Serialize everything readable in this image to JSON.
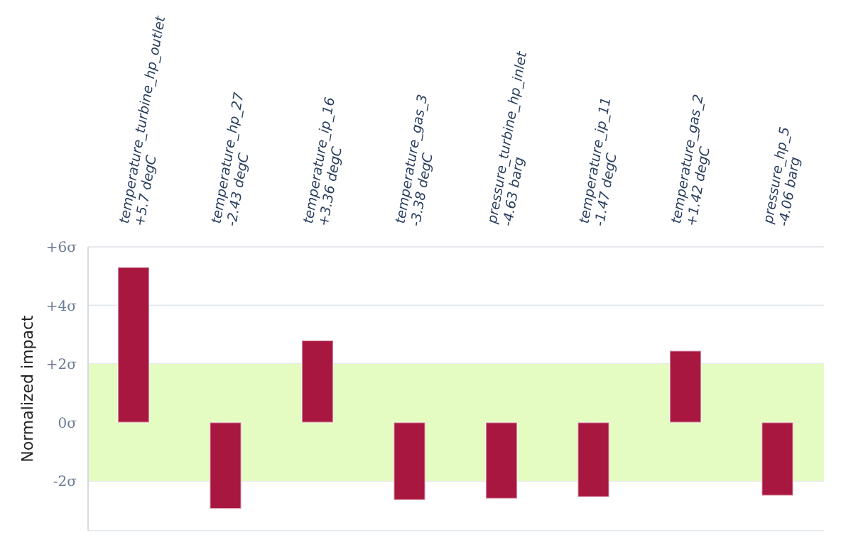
{
  "chart_data": {
    "type": "bar",
    "ylabel": "Normalized impact",
    "categories": [
      "temperature_turbine_hp_outlet\n+5.7 degC",
      "temperature_hp_27\n-2.43 degC",
      "temperature_ip_16\n+3.36 degC",
      "temperature_gas_3\n-3.38 degC",
      "pressure_turbine_hp_inlet\n-4.63 barg",
      "temperature_ip_11\n-1.47 degC",
      "temperature_gas_2\n+1.42 degC",
      "pressure_hp_5\n-4.06 barg"
    ],
    "values": [
      5.3,
      -2.95,
      2.8,
      -2.65,
      -2.6,
      -2.55,
      2.45,
      -2.5
    ],
    "color": "#a8173f",
    "ylim": [
      -3.7,
      6
    ],
    "yticks": [
      {
        "value": -2,
        "label": "-2σ"
      },
      {
        "value": 0,
        "label": "0σ"
      },
      {
        "value": 2,
        "label": "+2σ"
      },
      {
        "value": 4,
        "label": "+4σ"
      },
      {
        "value": 6,
        "label": "+6σ"
      }
    ],
    "bands": [
      {
        "axis": "y",
        "from": -2,
        "to": 2,
        "color": "#e4fbc2"
      }
    ],
    "grid": "y",
    "legend": false
  }
}
